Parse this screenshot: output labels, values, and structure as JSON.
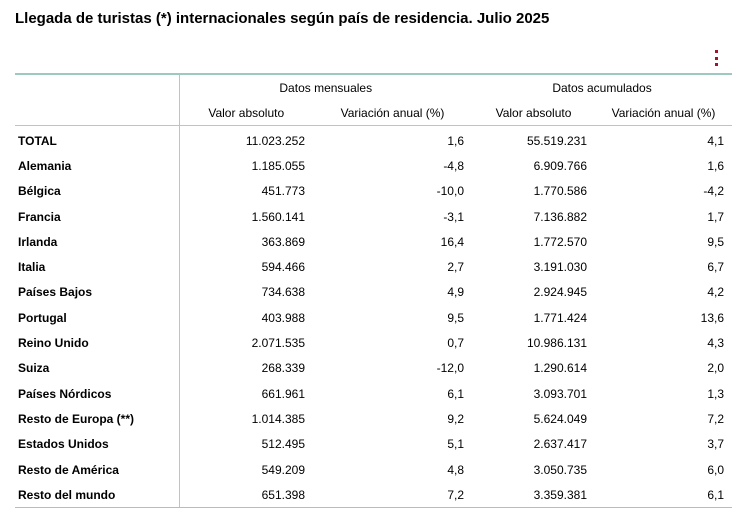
{
  "title": "Llegada de turistas (*) internacionales según país de residencia. Julio 2025",
  "menu_icon": "kebab-vertical-icon",
  "accent_color": "#a3122d",
  "chart_data": {
    "type": "table",
    "title": "Llegada de turistas (*) internacionales según país de residencia. Julio 2025",
    "column_groups": [
      "Datos mensuales",
      "Datos acumulados"
    ],
    "columns": [
      "Valor absoluto",
      "Variación anual (%)",
      "Valor absoluto",
      "Variación anual (%)"
    ],
    "rows": [
      {
        "name": "TOTAL",
        "values": [
          "11.023.252",
          "1,6",
          "55.519.231",
          "4,1"
        ]
      },
      {
        "name": "Alemania",
        "values": [
          "1.185.055",
          "-4,8",
          "6.909.766",
          "1,6"
        ]
      },
      {
        "name": "Bélgica",
        "values": [
          "451.773",
          "-10,0",
          "1.770.586",
          "-4,2"
        ]
      },
      {
        "name": "Francia",
        "values": [
          "1.560.141",
          "-3,1",
          "7.136.882",
          "1,7"
        ]
      },
      {
        "name": "Irlanda",
        "values": [
          "363.869",
          "16,4",
          "1.772.570",
          "9,5"
        ]
      },
      {
        "name": "Italia",
        "values": [
          "594.466",
          "2,7",
          "3.191.030",
          "6,7"
        ]
      },
      {
        "name": "Países Bajos",
        "values": [
          "734.638",
          "4,9",
          "2.924.945",
          "4,2"
        ]
      },
      {
        "name": "Portugal",
        "values": [
          "403.988",
          "9,5",
          "1.771.424",
          "13,6"
        ]
      },
      {
        "name": "Reino Unido",
        "values": [
          "2.071.535",
          "0,7",
          "10.986.131",
          "4,3"
        ]
      },
      {
        "name": "Suiza",
        "values": [
          "268.339",
          "-12,0",
          "1.290.614",
          "2,0"
        ]
      },
      {
        "name": "Países Nórdicos",
        "values": [
          "661.961",
          "6,1",
          "3.093.701",
          "1,3"
        ]
      },
      {
        "name": "Resto de Europa (**)",
        "values": [
          "1.014.385",
          "9,2",
          "5.624.049",
          "7,2"
        ]
      },
      {
        "name": "Estados Unidos",
        "values": [
          "512.495",
          "5,1",
          "2.637.417",
          "3,7"
        ]
      },
      {
        "name": "Resto de América",
        "values": [
          "549.209",
          "4,8",
          "3.050.735",
          "6,0"
        ]
      },
      {
        "name": "Resto del mundo",
        "values": [
          "651.398",
          "7,2",
          "3.359.381",
          "6,1"
        ]
      }
    ]
  }
}
